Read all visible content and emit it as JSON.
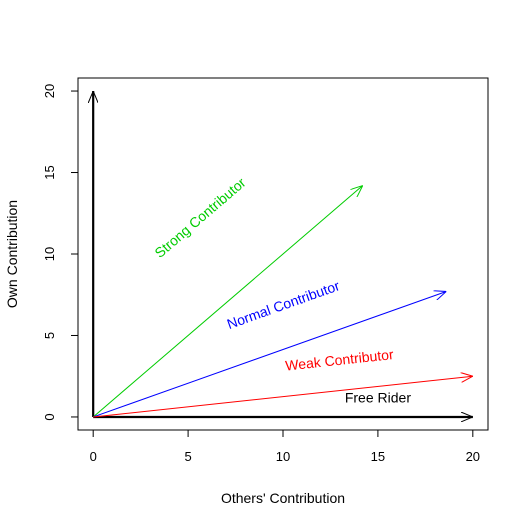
{
  "chart_data": {
    "type": "line",
    "title": "",
    "xlabel": "Others' Contribution",
    "ylabel": "Own Contribution",
    "xlim": [
      -0.8,
      20.8
    ],
    "ylim": [
      -0.8,
      20.8
    ],
    "xticks": [
      0,
      5,
      10,
      15,
      20
    ],
    "yticks": [
      0,
      5,
      10,
      15,
      20
    ],
    "grid": false,
    "legend": "none",
    "axes_vectors": [
      {
        "from": [
          0,
          0
        ],
        "to": [
          0,
          20
        ],
        "color": "#000000"
      },
      {
        "from": [
          0,
          0
        ],
        "to": [
          20,
          0
        ],
        "color": "#000000"
      }
    ],
    "series": [
      {
        "name": "Strong Contributor",
        "color": "#00cc00",
        "from": [
          0,
          0
        ],
        "to": [
          14.2,
          14.2
        ],
        "label": {
          "text": "Strong Contributor",
          "x": 5.8,
          "y": 12.0
        }
      },
      {
        "name": "Normal Contributor",
        "color": "#0000ff",
        "from": [
          0,
          0
        ],
        "to": [
          18.6,
          7.7
        ],
        "label": {
          "text": "Normal Contributor",
          "x": 10.1,
          "y": 6.6
        }
      },
      {
        "name": "Weak Contributor",
        "color": "#ff0000",
        "from": [
          0,
          0
        ],
        "to": [
          20,
          2.5
        ],
        "label": {
          "text": "Weak Contributor",
          "x": 13.0,
          "y": 3.2
        }
      },
      {
        "name": "Free Rider",
        "color": "#000000",
        "from": [
          0,
          0
        ],
        "to": [
          20,
          0
        ],
        "label": {
          "text": "Free Rider",
          "x": 15.0,
          "y": 0.9
        }
      }
    ]
  }
}
